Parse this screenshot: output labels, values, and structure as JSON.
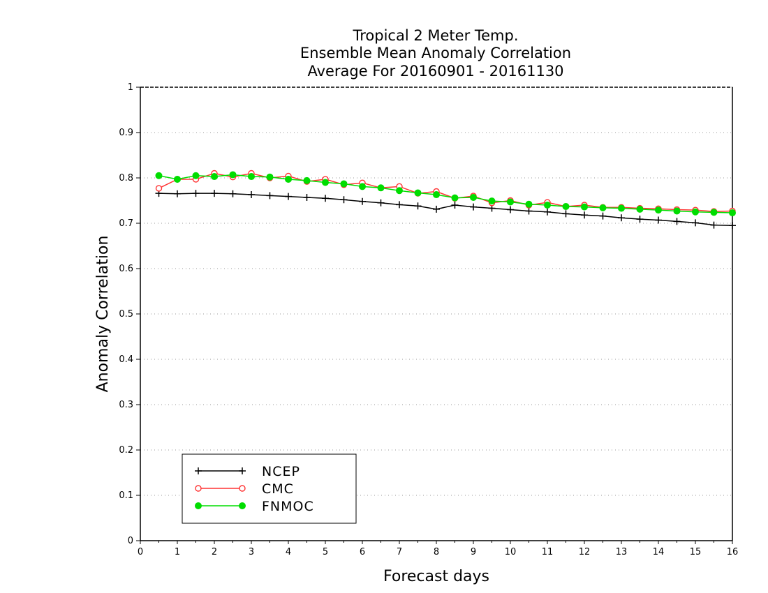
{
  "chart_data": {
    "type": "line",
    "title_lines": [
      "Tropical 2 Meter Temp.",
      "Ensemble Mean Anomaly Correlation",
      "Average For 20160901 - 20161130"
    ],
    "xlabel": "Forecast days",
    "ylabel": "Anomaly Correlation",
    "xlim": [
      0,
      16
    ],
    "ylim": [
      0,
      1
    ],
    "x_ticks": [
      0,
      1,
      2,
      3,
      4,
      5,
      6,
      7,
      8,
      9,
      10,
      11,
      12,
      13,
      14,
      15,
      16
    ],
    "y_ticks": [
      0,
      0.1,
      0.2,
      0.3,
      0.4,
      0.5,
      0.6,
      0.7,
      0.8,
      0.9,
      1
    ],
    "grid": "horizontal dotted",
    "legend_position": "bottom-left",
    "x": [
      0.5,
      1,
      1.5,
      2,
      2.5,
      3,
      3.5,
      4,
      4.5,
      5,
      5.5,
      6,
      6.5,
      7,
      7.5,
      8,
      8.5,
      9,
      9.5,
      10,
      10.5,
      11,
      11.5,
      12,
      12.5,
      13,
      13.5,
      14,
      14.5,
      15,
      15.5,
      16
    ],
    "series": [
      {
        "name": "NCEP",
        "color": "#000000",
        "marker": "plus",
        "values": [
          0.766,
          0.765,
          0.766,
          0.766,
          0.765,
          0.763,
          0.761,
          0.759,
          0.757,
          0.755,
          0.752,
          0.748,
          0.745,
          0.741,
          0.738,
          0.731,
          0.74,
          0.736,
          0.733,
          0.73,
          0.727,
          0.725,
          0.721,
          0.718,
          0.716,
          0.712,
          0.709,
          0.707,
          0.704,
          0.701,
          0.696,
          0.695
        ]
      },
      {
        "name": "CMC",
        "color": "#ff3333",
        "marker": "open-circle",
        "values": [
          0.777,
          0.797,
          0.797,
          0.81,
          0.802,
          0.81,
          0.8,
          0.804,
          0.792,
          0.797,
          0.785,
          0.789,
          0.778,
          0.781,
          0.766,
          0.77,
          0.755,
          0.76,
          0.745,
          0.75,
          0.74,
          0.746,
          0.737,
          0.74,
          0.735,
          0.735,
          0.733,
          0.732,
          0.73,
          0.729,
          0.726,
          0.727
        ]
      },
      {
        "name": "FNMOC",
        "color": "#00dd00",
        "marker": "filled-circle",
        "values": [
          0.805,
          0.797,
          0.805,
          0.803,
          0.807,
          0.803,
          0.802,
          0.797,
          0.794,
          0.79,
          0.787,
          0.781,
          0.778,
          0.772,
          0.767,
          0.763,
          0.756,
          0.757,
          0.749,
          0.747,
          0.742,
          0.74,
          0.737,
          0.736,
          0.734,
          0.733,
          0.731,
          0.729,
          0.727,
          0.725,
          0.724,
          0.723
        ]
      }
    ]
  }
}
